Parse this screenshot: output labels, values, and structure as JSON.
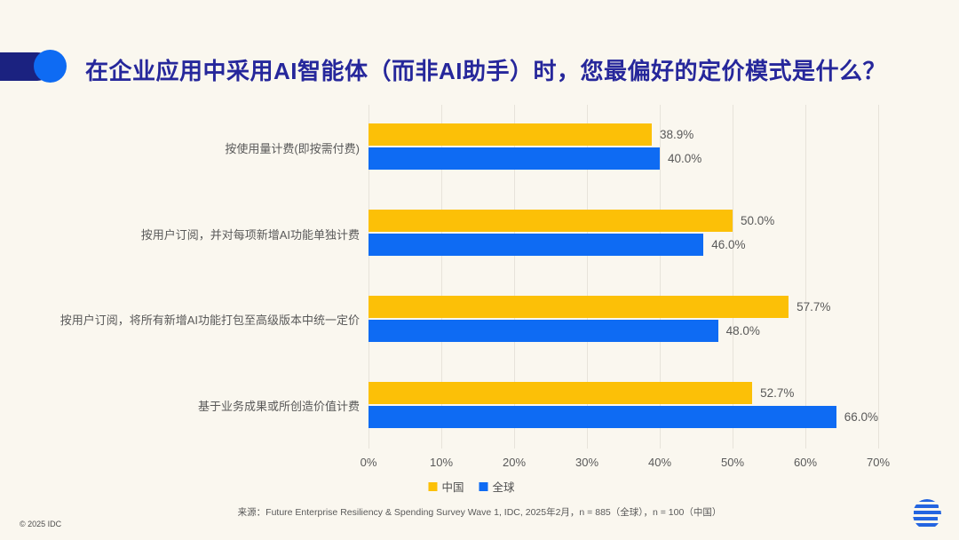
{
  "header": {
    "title": "在企业应用中采用AI智能体（而非AI助手）时，您最偏好的定价模式是什么？",
    "accent_navy": "#1B2280",
    "accent_blue": "#0E6BF3"
  },
  "chart_data": {
    "type": "bar",
    "orientation": "horizontal",
    "title": "在企业应用中采用AI智能体（而非AI助手）时，您最偏好的定价模式是什么？",
    "categories": [
      "按使用量计费(即按需付费)",
      "按用户订阅，并对每项新增AI功能单独计费",
      "按用户订阅，将所有新增AI功能打包至高级版本中统一定价",
      "基于业务成果或所创造价值计费"
    ],
    "series": [
      {
        "name": "中国",
        "color": "#FCC007",
        "values": [
          38.9,
          50.0,
          57.7,
          52.7
        ],
        "labels": [
          "38.9%",
          "50.0%",
          "57.7%",
          "52.7%"
        ]
      },
      {
        "name": "全球",
        "color": "#0E6BF3",
        "values": [
          40.0,
          46.0,
          48.0,
          66.0
        ],
        "labels": [
          "40.0%",
          "46.0%",
          "48.0%",
          "66.0%"
        ]
      }
    ],
    "xlim": [
      0,
      70
    ],
    "x_ticks": [
      "0%",
      "10%",
      "20%",
      "30%",
      "40%",
      "50%",
      "60%",
      "70%"
    ],
    "grid": true,
    "gridline_color": "#E7E3DA",
    "legend_position": "bottom"
  },
  "footer": {
    "source": "来源：Future Enterprise Resiliency & Spending Survey Wave 1, IDC, 2025年2月，n = 885（全球），n = 100（中国）",
    "copyright": "© 2025 IDC",
    "logo_color": "#2465E0"
  }
}
